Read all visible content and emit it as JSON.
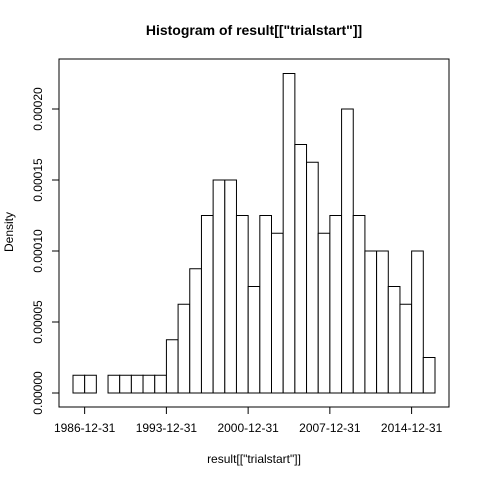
{
  "chart_data": {
    "type": "bar",
    "title": "Histogram of result[[\"trialstart\"]]",
    "xlabel": "result[[\"trialstart\"]]",
    "ylabel": "Density",
    "x_tick_labels": [
      "1986-12-31",
      "1993-12-31",
      "2000-12-31",
      "2007-12-31",
      "2014-12-31"
    ],
    "x_ticks": [
      "1986-12-31",
      "1993-12-31",
      "2000-12-31",
      "2007-12-31",
      "2014-12-31"
    ],
    "y_tick_labels": [
      "0.00000",
      "0.00005",
      "0.00010",
      "0.00015",
      "0.00020"
    ],
    "y_ticks": [
      0,
      5e-05,
      0.0001,
      0.00015,
      0.0002
    ],
    "ylim": [
      0,
      0.000235
    ],
    "grid": false,
    "bins": [
      {
        "start": "1986-01-01",
        "end": "1987-01-01",
        "density": 1.25e-05
      },
      {
        "start": "1987-01-01",
        "end": "1988-01-01",
        "density": 1.25e-05
      },
      {
        "start": "1988-01-01",
        "end": "1989-01-01",
        "density": 0
      },
      {
        "start": "1989-01-01",
        "end": "1990-01-01",
        "density": 1.25e-05
      },
      {
        "start": "1990-01-01",
        "end": "1991-01-01",
        "density": 1.25e-05
      },
      {
        "start": "1991-01-01",
        "end": "1992-01-01",
        "density": 1.25e-05
      },
      {
        "start": "1992-01-01",
        "end": "1993-01-01",
        "density": 1.25e-05
      },
      {
        "start": "1993-01-01",
        "end": "1994-01-01",
        "density": 1.25e-05
      },
      {
        "start": "1994-01-01",
        "end": "1995-01-01",
        "density": 3.75e-05
      },
      {
        "start": "1995-01-01",
        "end": "1996-01-01",
        "density": 6.25e-05
      },
      {
        "start": "1996-01-01",
        "end": "1997-01-01",
        "density": 8.75e-05
      },
      {
        "start": "1997-01-01",
        "end": "1998-01-01",
        "density": 0.000125
      },
      {
        "start": "1998-01-01",
        "end": "1999-01-01",
        "density": 0.00015
      },
      {
        "start": "1999-01-01",
        "end": "2000-01-01",
        "density": 0.00015
      },
      {
        "start": "2000-01-01",
        "end": "2001-01-01",
        "density": 0.000125
      },
      {
        "start": "2001-01-01",
        "end": "2002-01-01",
        "density": 7.5e-05
      },
      {
        "start": "2002-01-01",
        "end": "2003-01-01",
        "density": 0.000125
      },
      {
        "start": "2003-01-01",
        "end": "2004-01-01",
        "density": 0.0001125
      },
      {
        "start": "2004-01-01",
        "end": "2005-01-01",
        "density": 0.000225
      },
      {
        "start": "2005-01-01",
        "end": "2006-01-01",
        "density": 0.000175
      },
      {
        "start": "2006-01-01",
        "end": "2007-01-01",
        "density": 0.0001625
      },
      {
        "start": "2007-01-01",
        "end": "2008-01-01",
        "density": 0.0001125
      },
      {
        "start": "2008-01-01",
        "end": "2009-01-01",
        "density": 0.000125
      },
      {
        "start": "2009-01-01",
        "end": "2010-01-01",
        "density": 0.0002
      },
      {
        "start": "2010-01-01",
        "end": "2011-01-01",
        "density": 0.000125
      },
      {
        "start": "2011-01-01",
        "end": "2012-01-01",
        "density": 0.0001
      },
      {
        "start": "2012-01-01",
        "end": "2013-01-01",
        "density": 0.0001
      },
      {
        "start": "2013-01-01",
        "end": "2014-01-01",
        "density": 7.5e-05
      },
      {
        "start": "2014-01-01",
        "end": "2015-01-01",
        "density": 6.25e-05
      },
      {
        "start": "2015-01-01",
        "end": "2016-01-01",
        "density": 0.0001
      },
      {
        "start": "2016-01-01",
        "end": "2017-01-01",
        "density": 2.5e-05
      }
    ]
  }
}
